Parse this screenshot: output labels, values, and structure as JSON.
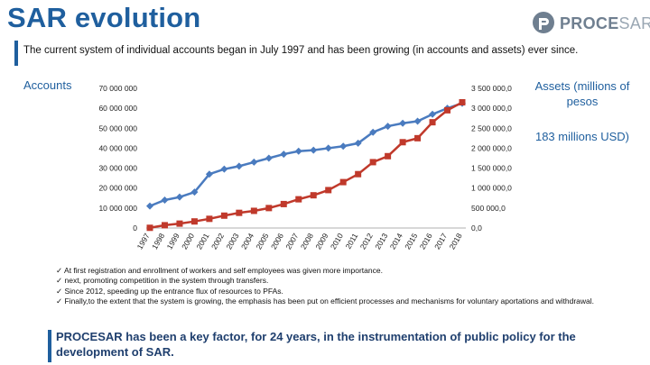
{
  "header": {
    "title": "SAR evolution",
    "subtitle": "The current system of individual accounts began in July 1997 and has been growing (in accounts and assets) ever since.",
    "logo_text_bold": "PROCE",
    "logo_text_light": "SAR",
    "logo_icon": "procesar-logo-icon"
  },
  "labels": {
    "accounts": "Accounts",
    "assets": "Assets (millions of pesos",
    "usd": "183 millions USD)"
  },
  "chart_data": {
    "type": "line",
    "categories": [
      "1997",
      "1998",
      "1999",
      "2000",
      "2001",
      "2002",
      "2003",
      "2004",
      "2005",
      "2006",
      "2007",
      "2008",
      "2009",
      "2010",
      "2011",
      "2012",
      "2013",
      "2014",
      "2015",
      "2016",
      "2017",
      "2018"
    ],
    "left_axis": {
      "min": 0,
      "max": 70000000,
      "ticks": [
        0,
        10000000,
        20000000,
        30000000,
        40000000,
        50000000,
        60000000,
        70000000
      ],
      "tick_labels": [
        "0",
        "10 000 000",
        "20 000 000",
        "30 000 000",
        "40 000 000",
        "50 000 000",
        "60 000 000",
        "70 000 000"
      ]
    },
    "right_axis": {
      "min": 0,
      "max": 3500000,
      "ticks": [
        0,
        500000,
        1000000,
        1500000,
        2000000,
        2500000,
        3000000,
        3500000
      ],
      "tick_labels": [
        "0,0",
        "500 000,0",
        "1 000 000,0",
        "1 500 000,0",
        "2 000 000,0",
        "2 500 000,0",
        "3 000 000,0",
        "3 500 000,0"
      ]
    },
    "series": [
      {
        "name": "Accounts",
        "axis": "left",
        "color": "#4a7bbf",
        "marker": "diamond",
        "values": [
          11000000,
          14000000,
          15500000,
          18000000,
          27000000,
          29500000,
          31000000,
          33000000,
          35000000,
          37000000,
          38500000,
          39000000,
          40000000,
          41000000,
          42500000,
          48000000,
          51000000,
          52500000,
          53500000,
          57000000,
          60000000,
          62500000
        ]
      },
      {
        "name": "Assets",
        "axis": "right",
        "color": "#c0392b",
        "marker": "square",
        "values": [
          5000,
          70000,
          110000,
          165000,
          230000,
          310000,
          380000,
          430000,
          500000,
          600000,
          720000,
          820000,
          950000,
          1150000,
          1350000,
          1650000,
          1800000,
          2150000,
          2250000,
          2650000,
          2950000,
          3150000
        ]
      }
    ]
  },
  "bullets": [
    "At first registration and enrollment of workers and self employees was given more importance.",
    "next, promoting competition in the system through transfers.",
    "Since 2012, speeding up the entrance flux of resources to PFAs.",
    "Finally,to the extent that the system is growing, the emphasis has been put on efficient processes and mechanisms for voluntary aportations and withdrawal."
  ],
  "footer": "PROCESAR  has been a key factor, for 24 years, in the instrumentation of public policy for the development of SAR.",
  "colors": {
    "brand": "#1f5f9e",
    "accounts_line": "#4a7bbf",
    "assets_line": "#c0392b"
  }
}
